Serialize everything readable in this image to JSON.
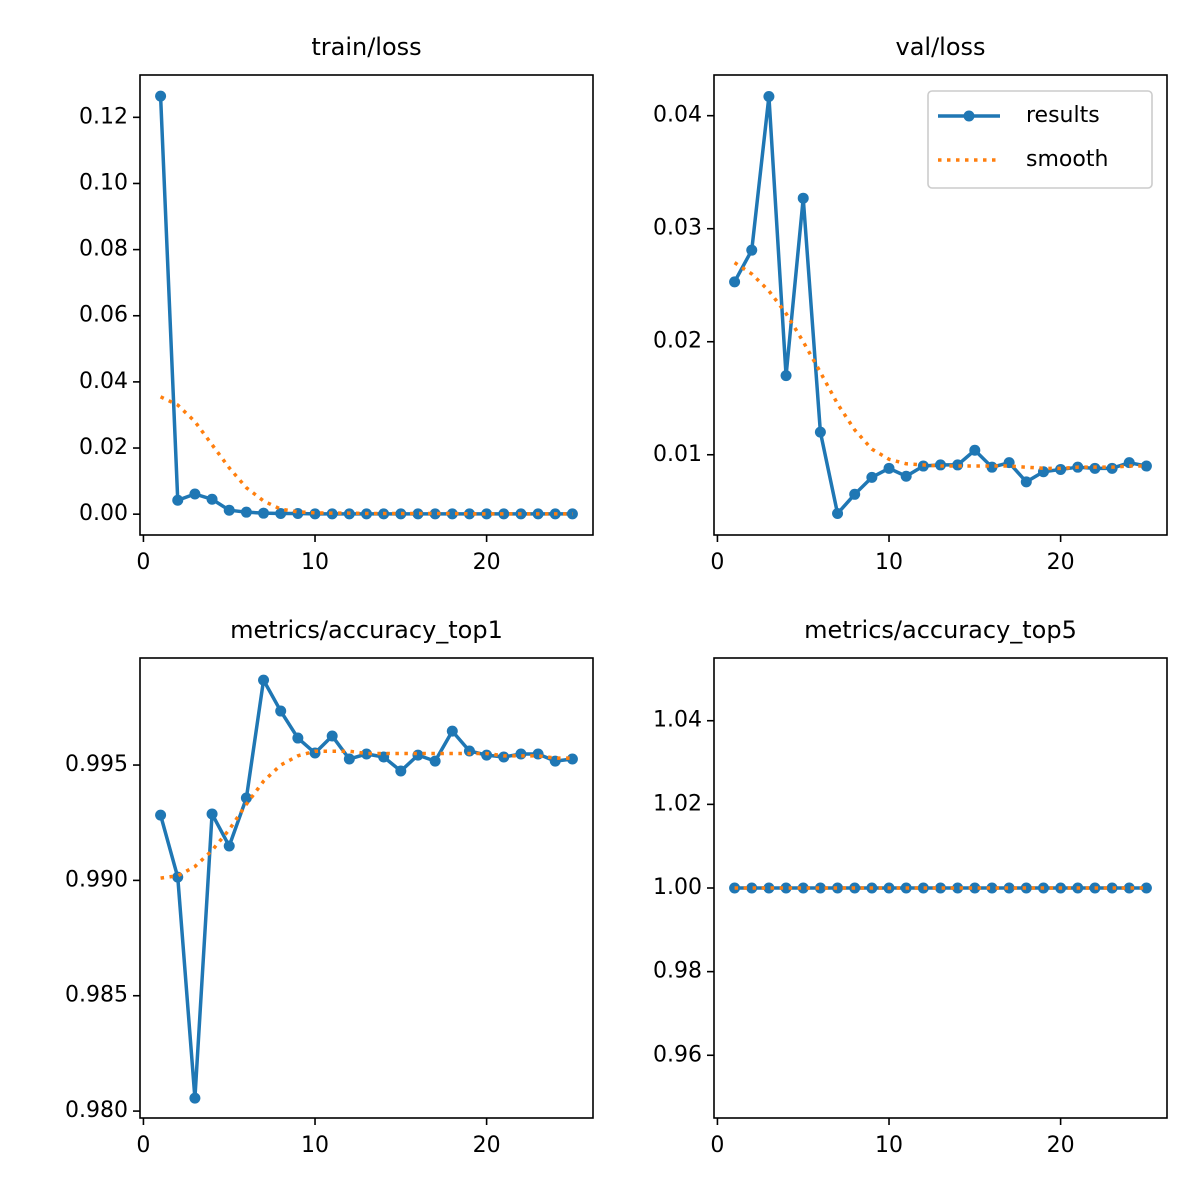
{
  "chart_data": [
    {
      "type": "line",
      "title": "train/loss",
      "x": [
        1,
        2,
        3,
        4,
        5,
        6,
        7,
        8,
        9,
        10,
        11,
        12,
        13,
        14,
        15,
        16,
        17,
        18,
        19,
        20,
        21,
        22,
        23,
        24,
        25
      ],
      "series": [
        {
          "name": "results",
          "color": "#1f77b4",
          "values": [
            0.1264,
            0.0042,
            0.0061,
            0.0045,
            0.0012,
            0.0006,
            0.0003,
            0.0002,
            0.0002,
            0.0001,
            0.0001,
            0.0001,
            0.0001,
            0.0001,
            0.0001,
            0.0001,
            0.0001,
            0.0001,
            0.0001,
            0.0001,
            0.0001,
            0.0001,
            0.0001,
            0.0001,
            0.0001
          ]
        },
        {
          "name": "smooth",
          "color": "#ff7f0e",
          "values": [
            0.0355,
            0.033,
            0.028,
            0.021,
            0.014,
            0.008,
            0.004,
            0.0015,
            0.0007,
            0.0004,
            0.0003,
            0.0003,
            0.0002,
            0.0002,
            0.0002,
            0.0002,
            0.0002,
            0.0002,
            0.0001,
            0.0001,
            0.0001,
            0.0001,
            0.0001,
            0.0001,
            0.0001
          ]
        }
      ],
      "xlim": [
        -0.2,
        26.2
      ],
      "xticks": [
        0,
        10,
        20
      ],
      "ylim": [
        -0.0063,
        0.1328
      ],
      "yticks": [
        {
          "value": 0,
          "label": "0.00"
        },
        0.02,
        0.04,
        0.06,
        0.08,
        {
          "value": 0.1,
          "label": "0.10"
        },
        0.12
      ],
      "legend": false
    },
    {
      "type": "line",
      "title": "val/loss",
      "x": [
        1,
        2,
        3,
        4,
        5,
        6,
        7,
        8,
        9,
        10,
        11,
        12,
        13,
        14,
        15,
        16,
        17,
        18,
        19,
        20,
        21,
        22,
        23,
        24,
        25
      ],
      "series": [
        {
          "name": "results",
          "color": "#1f77b4",
          "values": [
            0.0253,
            0.0281,
            0.0417,
            0.017,
            0.0327,
            0.012,
            0.0048,
            0.0065,
            0.008,
            0.0088,
            0.0081,
            0.009,
            0.0091,
            0.0091,
            0.0104,
            0.0089,
            0.0093,
            0.0076,
            0.0085,
            0.0087,
            0.0089,
            0.0088,
            0.0088,
            0.0093,
            0.009
          ]
        },
        {
          "name": "smooth",
          "color": "#ff7f0e",
          "values": [
            0.027,
            0.026,
            0.0245,
            0.0225,
            0.02,
            0.0173,
            0.0145,
            0.0122,
            0.0105,
            0.0096,
            0.0092,
            0.0091,
            0.009,
            0.009,
            0.009,
            0.009,
            0.009,
            0.0089,
            0.0088,
            0.0088,
            0.0089,
            0.0089,
            0.0089,
            0.009,
            0.009
          ]
        }
      ],
      "xlim": [
        -0.2,
        26.2
      ],
      "xticks": [
        0,
        10,
        20
      ],
      "ylim": [
        0.0029,
        0.0436
      ],
      "yticks": [
        0.01,
        0.02,
        0.03,
        0.04
      ],
      "legend": "upper right"
    },
    {
      "type": "line",
      "title": "metrics/accuracy_top1",
      "x": [
        1,
        2,
        3,
        4,
        5,
        6,
        7,
        8,
        9,
        10,
        11,
        12,
        13,
        14,
        15,
        16,
        17,
        18,
        19,
        20,
        21,
        22,
        23,
        24,
        25
      ],
      "series": [
        {
          "name": "results",
          "color": "#1f77b4",
          "values": [
            0.99283,
            0.99014,
            0.98056,
            0.99288,
            0.99149,
            0.99357,
            0.99868,
            0.99734,
            0.99617,
            0.99552,
            0.99626,
            0.99526,
            0.99548,
            0.99535,
            0.99474,
            0.99543,
            0.99517,
            0.99647,
            0.99561,
            0.99543,
            0.99535,
            0.99548,
            0.99548,
            0.99517,
            0.99526
          ]
        },
        {
          "name": "smooth",
          "color": "#ff7f0e",
          "values": [
            0.9901,
            0.9902,
            0.9906,
            0.9913,
            0.9922,
            0.9933,
            0.9943,
            0.995,
            0.9954,
            0.9956,
            0.9956,
            0.9956,
            0.9955,
            0.9955,
            0.9955,
            0.9955,
            0.9955,
            0.9955,
            0.9955,
            0.9955,
            0.9954,
            0.9954,
            0.9954,
            0.9953,
            0.9953
          ]
        }
      ],
      "xlim": [
        -0.2,
        26.2
      ],
      "xticks": [
        0,
        10,
        20
      ],
      "ylim": [
        0.9797,
        0.99964
      ],
      "yticks": [
        {
          "value": 0.98,
          "label": "0.980"
        },
        0.985,
        {
          "value": 0.99,
          "label": "0.990"
        },
        0.995
      ],
      "legend": false
    },
    {
      "type": "line",
      "title": "metrics/accuracy_top5",
      "x": [
        1,
        2,
        3,
        4,
        5,
        6,
        7,
        8,
        9,
        10,
        11,
        12,
        13,
        14,
        15,
        16,
        17,
        18,
        19,
        20,
        21,
        22,
        23,
        24,
        25
      ],
      "series": [
        {
          "name": "results",
          "color": "#1f77b4",
          "values": [
            1,
            1,
            1,
            1,
            1,
            1,
            1,
            1,
            1,
            1,
            1,
            1,
            1,
            1,
            1,
            1,
            1,
            1,
            1,
            1,
            1,
            1,
            1,
            1,
            1
          ]
        },
        {
          "name": "smooth",
          "color": "#ff7f0e",
          "values": [
            1,
            1,
            1,
            1,
            1,
            1,
            1,
            1,
            1,
            1,
            1,
            1,
            1,
            1,
            1,
            1,
            1,
            1,
            1,
            1,
            1,
            1,
            1,
            1,
            1
          ]
        }
      ],
      "xlim": [
        -0.2,
        26.2
      ],
      "xticks": [
        0,
        10,
        20
      ],
      "ylim": [
        0.945,
        1.055
      ],
      "yticks": [
        0.96,
        0.98,
        {
          "value": 1,
          "label": "1.00"
        },
        1.02,
        1.04
      ],
      "legend": false
    }
  ]
}
